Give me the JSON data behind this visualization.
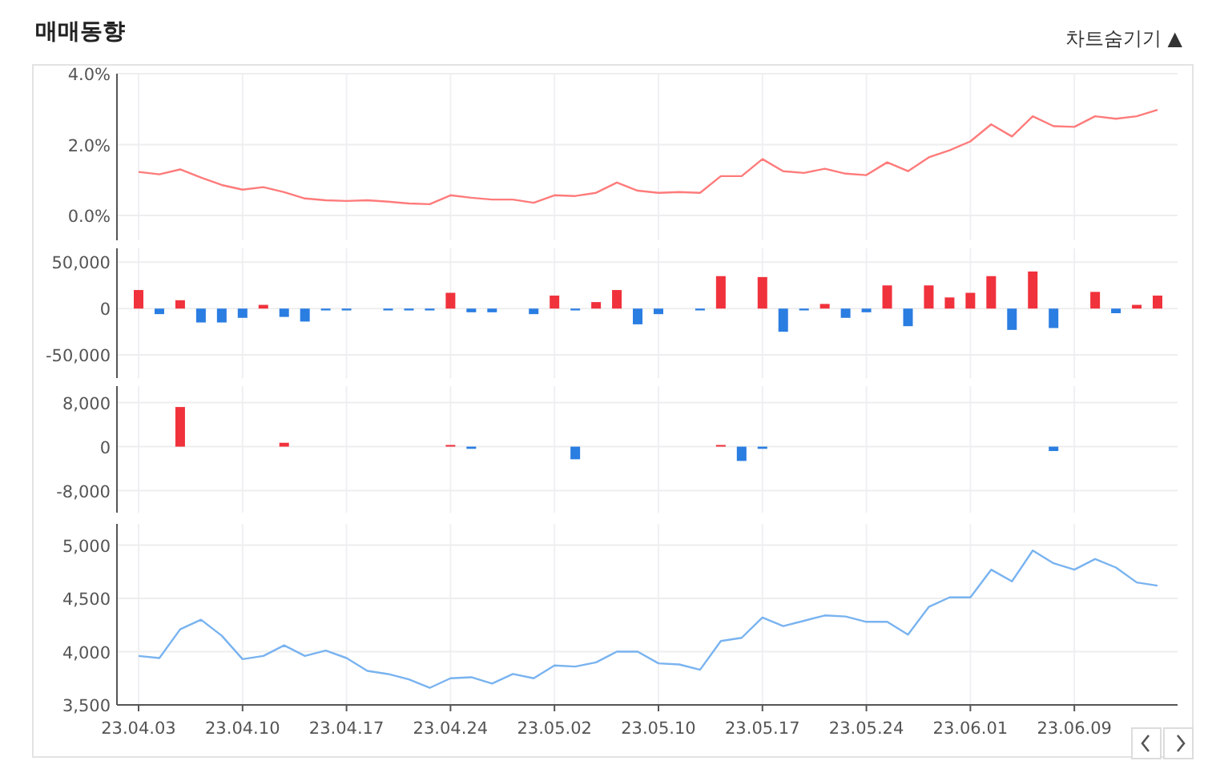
{
  "chart_data": [
    {
      "type": "line",
      "title": "매매동향",
      "annotations": [
        "차트숨기기 ▲"
      ],
      "categories": [
        "23.04.03",
        null,
        null,
        null,
        null,
        "23.04.10",
        null,
        null,
        null,
        null,
        "23.04.17",
        null,
        null,
        null,
        null,
        "23.04.24",
        null,
        null,
        null,
        null,
        "23.05.02",
        null,
        null,
        null,
        null,
        "23.05.10",
        null,
        null,
        null,
        null,
        "23.05.17",
        null,
        null,
        null,
        null,
        "23.05.24",
        null,
        null,
        null,
        null,
        "23.06.01",
        null,
        null,
        null,
        null,
        "23.06.09",
        null,
        null,
        null,
        null
      ],
      "values": [
        1.23,
        1.16,
        1.3,
        1.07,
        0.86,
        0.73,
        0.8,
        0.66,
        0.48,
        0.43,
        0.41,
        0.43,
        0.39,
        0.34,
        0.32,
        0.57,
        0.5,
        0.45,
        0.45,
        0.36,
        0.57,
        0.55,
        0.64,
        0.93,
        0.7,
        0.64,
        0.66,
        0.64,
        1.11,
        1.11,
        1.59,
        1.25,
        1.2,
        1.32,
        1.18,
        1.14,
        1.5,
        1.25,
        1.64,
        1.84,
        2.09,
        2.57,
        2.23,
        2.8,
        2.52,
        2.5,
        2.8,
        2.73,
        2.8,
        2.98
      ],
      "color": "#ff7b7b",
      "ylim": [
        -0.7,
        4.0
      ],
      "yticks": [
        {
          "value": 0,
          "label": "0.0%"
        },
        {
          "value": 2,
          "label": "2.0%"
        },
        {
          "value": 4,
          "label": "4.0%"
        }
      ],
      "grid": true,
      "tick_labels": "y"
    },
    {
      "type": "bar",
      "categories": [
        "23.04.03",
        null,
        null,
        null,
        null,
        "23.04.10",
        null,
        null,
        null,
        null,
        "23.04.17",
        null,
        null,
        null,
        null,
        "23.04.24",
        null,
        null,
        null,
        null,
        "23.05.02",
        null,
        null,
        null,
        null,
        "23.05.10",
        null,
        null,
        null,
        null,
        "23.05.17",
        null,
        null,
        null,
        null,
        "23.05.24",
        null,
        null,
        null,
        null,
        "23.06.01",
        null,
        null,
        null,
        null,
        "23.06.09",
        null,
        null,
        null,
        null
      ],
      "values": [
        20000,
        -6000,
        9000,
        -15000,
        -15000,
        -10000,
        4000,
        -9000,
        -14000,
        -2000,
        -2000,
        null,
        -2000,
        -2000,
        -2000,
        17000,
        -4000,
        -4000,
        null,
        -6000,
        14000,
        -2000,
        7000,
        20000,
        -17000,
        -6000,
        null,
        -2000,
        35000,
        0,
        34000,
        -25000,
        -2000,
        5000,
        -10000,
        -4000,
        25000,
        -19000,
        25000,
        12000,
        17000,
        35000,
        -23000,
        40000,
        -21000,
        null,
        18000,
        -5000,
        4000,
        14000
      ],
      "colors": [
        "#f0323c",
        "#2a7de1",
        "#f0323c",
        "#2a7de1",
        "#2a7de1",
        "#2a7de1",
        "#f0323c",
        "#2a7de1",
        "#2a7de1",
        "#2a7de1",
        "#2a7de1",
        null,
        "#2a7de1",
        "#2a7de1",
        "#2a7de1",
        "#f0323c",
        "#2a7de1",
        "#2a7de1",
        null,
        "#2a7de1",
        "#f0323c",
        "#2a7de1",
        "#f0323c",
        "#f0323c",
        "#2a7de1",
        "#2a7de1",
        null,
        "#2a7de1",
        "#f0323c",
        "#f0323c",
        "#f0323c",
        "#2a7de1",
        "#2a7de1",
        "#f0323c",
        "#2a7de1",
        "#2a7de1",
        "#f0323c",
        "#2a7de1",
        "#f0323c",
        "#f0323c",
        "#f0323c",
        "#f0323c",
        "#2a7de1",
        "#f0323c",
        "#2a7de1",
        null,
        "#f0323c",
        "#2a7de1",
        "#f0323c",
        "#f0323c"
      ],
      "ylim": [
        -75000,
        65000
      ],
      "yticks": [
        {
          "value": -50000,
          "label": "-50,000"
        },
        0,
        {
          "value": 50000,
          "label": "50,000"
        }
      ],
      "grid": true,
      "tick_labels": "y"
    },
    {
      "type": "bar",
      "categories": [
        "23.04.03",
        null,
        null,
        null,
        null,
        "23.04.10",
        null,
        null,
        null,
        null,
        "23.04.17",
        null,
        null,
        null,
        null,
        "23.04.24",
        null,
        null,
        null,
        null,
        "23.05.02",
        null,
        null,
        null,
        null,
        "23.05.10",
        null,
        null,
        null,
        null,
        "23.05.17",
        null,
        null,
        null,
        null,
        "23.05.24",
        null,
        null,
        null,
        null,
        "23.06.01",
        null,
        null,
        null,
        null,
        "23.06.09",
        null,
        null,
        null,
        null
      ],
      "values": [
        0,
        0,
        7200,
        0,
        0,
        0,
        0,
        700,
        0,
        0,
        0,
        0,
        0,
        0,
        0,
        300,
        -400,
        null,
        0,
        0,
        0,
        -2300,
        0,
        0,
        0,
        0,
        0,
        0,
        300,
        -2600,
        -400,
        null,
        0,
        0,
        0,
        0,
        0,
        0,
        0,
        0,
        0,
        0,
        0,
        0,
        -800,
        0,
        0,
        0,
        0,
        null
      ],
      "colors": [
        "#f0323c",
        "#f0323c",
        "#f0323c",
        "#f0323c",
        "#f0323c",
        "#f0323c",
        "#f0323c",
        "#f0323c",
        "#f0323c",
        "#f0323c",
        "#f0323c",
        "#f0323c",
        "#f0323c",
        "#f0323c",
        "#f0323c",
        "#f0323c",
        "#2a7de1",
        null,
        "#f0323c",
        "#f0323c",
        "#f0323c",
        "#2a7de1",
        "#f0323c",
        "#f0323c",
        "#f0323c",
        "#f0323c",
        "#f0323c",
        "#f0323c",
        "#f0323c",
        "#2a7de1",
        "#2a7de1",
        null,
        "#f0323c",
        "#f0323c",
        "#f0323c",
        "#f0323c",
        "#f0323c",
        "#f0323c",
        "#f0323c",
        "#f0323c",
        "#f0323c",
        "#f0323c",
        "#f0323c",
        "#f0323c",
        "#2a7de1",
        "#f0323c",
        "#f0323c",
        "#f0323c",
        "#f0323c",
        null
      ],
      "ylim": [
        -12000,
        11000
      ],
      "yticks": [
        {
          "value": -8000,
          "label": "-8,000"
        },
        0,
        {
          "value": 8000,
          "label": "8,000"
        }
      ],
      "grid": true,
      "tick_labels": "y"
    },
    {
      "type": "line",
      "categories": [
        "23.04.03",
        null,
        null,
        null,
        null,
        "23.04.10",
        null,
        null,
        null,
        null,
        "23.04.17",
        null,
        null,
        null,
        null,
        "23.04.24",
        null,
        null,
        null,
        null,
        "23.05.02",
        null,
        null,
        null,
        null,
        "23.05.10",
        null,
        null,
        null,
        null,
        "23.05.17",
        null,
        null,
        null,
        null,
        "23.05.24",
        null,
        null,
        null,
        null,
        "23.06.01",
        null,
        null,
        null,
        null,
        "23.06.09",
        null,
        null,
        null,
        null
      ],
      "values": [
        3960,
        3940,
        4210,
        4300,
        4150,
        3930,
        3960,
        4060,
        3960,
        4010,
        3940,
        3820,
        3790,
        3740,
        3660,
        3750,
        3760,
        3700,
        3790,
        3750,
        3870,
        3860,
        3900,
        4000,
        4000,
        3890,
        3880,
        3830,
        4100,
        4130,
        4320,
        4240,
        4290,
        4340,
        4330,
        4280,
        4280,
        4160,
        4420,
        4510,
        4510,
        4770,
        4660,
        4950,
        4830,
        4770,
        4870,
        4790,
        4650,
        4620
      ],
      "color": "#79b3f0",
      "ylim": [
        3500,
        5200
      ],
      "yticks": [
        {
          "value": 3500,
          "label": "3,500"
        },
        {
          "value": 4000,
          "label": "4,000"
        },
        {
          "value": 4500,
          "label": "4,500"
        },
        {
          "value": 5000,
          "label": "5,000"
        }
      ],
      "grid": true
    }
  ]
}
